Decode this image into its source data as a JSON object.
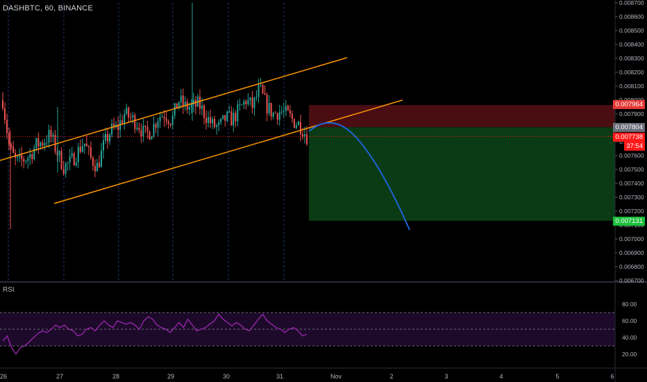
{
  "header": {
    "symbol": "DASHBTC, 60, BINANCE"
  },
  "rsi": {
    "title": "RSI"
  },
  "price_axis": {
    "ticks": [
      "0.008700",
      "0.008600",
      "0.008500",
      "0.008400",
      "0.008300",
      "0.008200",
      "0.008100",
      "0.008000",
      "0.007900",
      "0.007800",
      "0.007700",
      "0.007600",
      "0.007500",
      "0.007400",
      "0.007300",
      "0.007200",
      "0.007100",
      "0.007000",
      "0.006900",
      "0.006800",
      "0.006700"
    ],
    "tag_stop": "0.007964",
    "tag_entry": "0.007804",
    "tag_last": "0.007738",
    "tag_countdown": "37:54",
    "tag_target": "0.007131"
  },
  "rsi_axis": {
    "ticks": [
      "80.00",
      "60.00",
      "40.00",
      "20.00"
    ]
  },
  "time_axis": {
    "labels": [
      "26",
      "27",
      "28",
      "29",
      "30",
      "31",
      "Nov",
      "2",
      "3",
      "4",
      "5",
      "6"
    ]
  },
  "colors": {
    "up": "#26a69a",
    "down": "#ef5350",
    "channel": "#ff9800",
    "projection": "#1e63d8",
    "stop_zone": "#4a0d12",
    "target_zone": "#0b3b14",
    "rsi_line": "#9c27b0",
    "rsi_band": "#1d0a2a",
    "last_price": "#ff1a1a",
    "target_tag": "#1cbf3c"
  },
  "chart_data": {
    "type": "candlestick",
    "symbol": "DASHBTC",
    "interval": "60",
    "exchange": "BINANCE",
    "ylim": [
      0.0067,
      0.0087
    ],
    "x_labels": [
      "26",
      "27",
      "28",
      "29",
      "30",
      "31",
      "Nov",
      "2",
      "3",
      "4",
      "5",
      "6"
    ],
    "price_path": [
      0.008,
      0.00765,
      0.00755,
      0.00757,
      0.0076,
      0.00768,
      0.0077,
      0.00775,
      0.00763,
      0.00752,
      0.00755,
      0.00762,
      0.0077,
      0.00758,
      0.00752,
      0.00768,
      0.00778,
      0.0078,
      0.0079,
      0.00787,
      0.00783,
      0.00775,
      0.00778,
      0.00788,
      0.0079,
      0.00785,
      0.008,
      0.00795,
      0.00795,
      0.00797,
      0.00789,
      0.00782,
      0.0078,
      0.00787,
      0.00786,
      0.00793,
      0.008,
      0.00795,
      0.00808,
      0.00796,
      0.0079,
      0.00792,
      0.0079,
      0.00785,
      0.00782,
      0.00774
    ],
    "last_price": 0.007738,
    "entry": 0.007804,
    "stop_loss": 0.007964,
    "target": 0.007131,
    "rsi_range": [
      0,
      100
    ],
    "rsi_levels": [
      70,
      50,
      30
    ],
    "rsi_values": [
      36,
      42,
      28,
      20,
      28,
      30,
      35,
      40,
      45,
      48,
      46,
      50,
      55,
      52,
      55,
      50,
      48,
      42,
      44,
      50,
      52,
      48,
      55,
      60,
      55,
      52,
      60,
      58,
      56,
      58,
      55,
      50,
      60,
      65,
      62,
      55,
      52,
      50,
      46,
      52,
      58,
      52,
      62,
      55,
      48,
      50,
      52,
      56,
      60,
      68,
      62,
      58,
      54,
      58,
      55,
      50,
      48,
      55,
      62,
      68,
      60,
      56,
      52,
      50,
      46,
      50,
      52,
      48,
      42,
      44
    ]
  }
}
